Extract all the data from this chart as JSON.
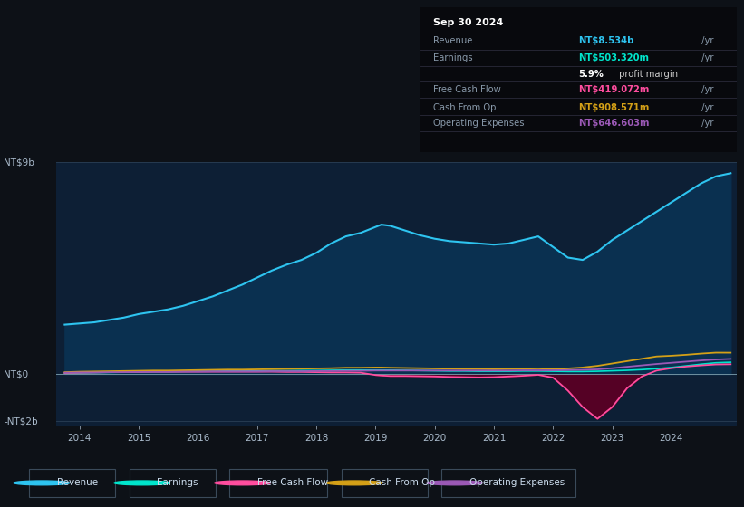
{
  "bg_color": "#0d1117",
  "plot_bg_color": "#0d1f35",
  "grid_color": "#1e3050",
  "revenue_color": "#2ec4f0",
  "earnings_color": "#00e5cc",
  "fcf_color": "#ff4d9e",
  "cashfromop_color": "#d4a017",
  "opex_color": "#9b59b6",
  "revenue_fill_color": "#0a3050",
  "fcf_fill_color": "#5a0025",
  "legend_items": [
    {
      "label": "Revenue",
      "color": "#2ec4f0"
    },
    {
      "label": "Earnings",
      "color": "#00e5cc"
    },
    {
      "label": "Free Cash Flow",
      "color": "#ff4d9e"
    },
    {
      "label": "Cash From Op",
      "color": "#d4a017"
    },
    {
      "label": "Operating Expenses",
      "color": "#9b59b6"
    }
  ],
  "info_box": {
    "date": "Sep 30 2024",
    "rows": [
      {
        "label": "Revenue",
        "value": "NT$8.534b",
        "value_color": "#2ec4f0",
        "unit": " /yr"
      },
      {
        "label": "Earnings",
        "value": "NT$503.320m",
        "value_color": "#00e5cc",
        "unit": " /yr"
      },
      {
        "label": "",
        "value": "5.9%",
        "value_color": "white",
        "extra": " profit margin",
        "unit": ""
      },
      {
        "label": "Free Cash Flow",
        "value": "NT$419.072m",
        "value_color": "#ff4d9e",
        "unit": " /yr"
      },
      {
        "label": "Cash From Op",
        "value": "NT$908.571m",
        "value_color": "#d4a017",
        "unit": " /yr"
      },
      {
        "label": "Operating Expenses",
        "value": "NT$646.603m",
        "value_color": "#9b59b6",
        "unit": " /yr"
      }
    ]
  },
  "ylim": [
    -2.2,
    9.0
  ],
  "xlim": [
    2013.6,
    2025.1
  ],
  "x_ticks": [
    2014,
    2015,
    2016,
    2017,
    2018,
    2019,
    2020,
    2021,
    2022,
    2023,
    2024
  ],
  "y_ticks_labels": [
    [
      "NT$9b",
      9.0
    ],
    [
      "NT$0",
      0.0
    ],
    [
      "-NT$2b",
      -2.0
    ]
  ],
  "years": [
    2013.75,
    2014.0,
    2014.25,
    2014.5,
    2014.75,
    2015.0,
    2015.25,
    2015.5,
    2015.75,
    2016.0,
    2016.25,
    2016.5,
    2016.75,
    2017.0,
    2017.25,
    2017.5,
    2017.75,
    2018.0,
    2018.25,
    2018.5,
    2018.75,
    2019.0,
    2019.1,
    2019.25,
    2019.5,
    2019.75,
    2020.0,
    2020.25,
    2020.5,
    2020.75,
    2021.0,
    2021.25,
    2021.5,
    2021.75,
    2022.0,
    2022.25,
    2022.5,
    2022.75,
    2023.0,
    2023.25,
    2023.5,
    2023.75,
    2024.0,
    2024.25,
    2024.5,
    2024.75,
    2025.0
  ],
  "revenue": [
    2.1,
    2.15,
    2.2,
    2.3,
    2.4,
    2.55,
    2.65,
    2.75,
    2.9,
    3.1,
    3.3,
    3.55,
    3.8,
    4.1,
    4.4,
    4.65,
    4.85,
    5.15,
    5.55,
    5.85,
    6.0,
    6.25,
    6.35,
    6.3,
    6.1,
    5.9,
    5.75,
    5.65,
    5.6,
    5.55,
    5.5,
    5.55,
    5.7,
    5.85,
    5.4,
    4.95,
    4.85,
    5.2,
    5.7,
    6.1,
    6.5,
    6.9,
    7.3,
    7.7,
    8.1,
    8.4,
    8.534
  ],
  "earnings": [
    0.04,
    0.05,
    0.06,
    0.07,
    0.08,
    0.09,
    0.1,
    0.1,
    0.11,
    0.12,
    0.12,
    0.13,
    0.13,
    0.13,
    0.14,
    0.14,
    0.15,
    0.15,
    0.16,
    0.17,
    0.17,
    0.17,
    0.17,
    0.17,
    0.16,
    0.15,
    0.14,
    0.13,
    0.13,
    0.12,
    0.12,
    0.12,
    0.13,
    0.13,
    0.12,
    0.11,
    0.11,
    0.12,
    0.14,
    0.16,
    0.19,
    0.23,
    0.28,
    0.35,
    0.42,
    0.48,
    0.503
  ],
  "fcf": [
    0.05,
    0.06,
    0.07,
    0.08,
    0.09,
    0.09,
    0.1,
    0.1,
    0.1,
    0.1,
    0.1,
    0.1,
    0.1,
    0.1,
    0.1,
    0.09,
    0.09,
    0.08,
    0.07,
    0.07,
    0.06,
    -0.04,
    -0.06,
    -0.08,
    -0.08,
    -0.09,
    -0.1,
    -0.12,
    -0.13,
    -0.14,
    -0.13,
    -0.1,
    -0.07,
    -0.03,
    -0.15,
    -0.7,
    -1.4,
    -1.9,
    -1.4,
    -0.6,
    -0.1,
    0.15,
    0.25,
    0.32,
    0.37,
    0.41,
    0.419
  ],
  "cashfromop": [
    0.08,
    0.1,
    0.11,
    0.12,
    0.13,
    0.14,
    0.15,
    0.15,
    0.16,
    0.17,
    0.18,
    0.19,
    0.19,
    0.2,
    0.21,
    0.22,
    0.23,
    0.24,
    0.25,
    0.27,
    0.27,
    0.28,
    0.28,
    0.27,
    0.26,
    0.25,
    0.24,
    0.23,
    0.22,
    0.22,
    0.21,
    0.22,
    0.23,
    0.24,
    0.22,
    0.24,
    0.28,
    0.35,
    0.45,
    0.55,
    0.65,
    0.75,
    0.78,
    0.82,
    0.87,
    0.91,
    0.908
  ],
  "opex": [
    0.06,
    0.07,
    0.07,
    0.08,
    0.08,
    0.09,
    0.09,
    0.09,
    0.1,
    0.1,
    0.11,
    0.11,
    0.11,
    0.11,
    0.12,
    0.12,
    0.12,
    0.13,
    0.13,
    0.14,
    0.14,
    0.15,
    0.15,
    0.15,
    0.15,
    0.15,
    0.15,
    0.15,
    0.15,
    0.15,
    0.15,
    0.15,
    0.16,
    0.16,
    0.16,
    0.17,
    0.18,
    0.2,
    0.25,
    0.31,
    0.37,
    0.43,
    0.48,
    0.53,
    0.58,
    0.62,
    0.646
  ]
}
